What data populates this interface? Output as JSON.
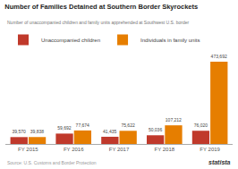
{
  "chart_data": {
    "type": "bar",
    "title": "Number of Families Detained at Southern Border Skyrockets",
    "subtitle": "Number of unaccompanied children and family units apprehended at Southwest U.S. border",
    "categories": [
      "FY 2015",
      "FY 2016",
      "FY 2017",
      "FY 2018",
      "FY 2019"
    ],
    "series": [
      {
        "name": "Unaccompanied children",
        "color": "#c0392b",
        "values": [
          39570,
          59692,
          41435,
          50036,
          76020
        ],
        "value_labels": [
          "39,570",
          "59,692",
          "41,435",
          "50,036",
          "76,020"
        ]
      },
      {
        "name": "Individuals in family units",
        "color": "#e67e00",
        "values": [
          39838,
          77674,
          75622,
          107212,
          473692
        ],
        "value_labels": [
          "39,838",
          "77,674",
          "75,622",
          "107,212",
          "473,692"
        ]
      }
    ],
    "ylim": [
      0,
      530000
    ],
    "yticks": [],
    "tick_labels": "x",
    "grid": false,
    "legend": "upper left",
    "data_labels": true,
    "annotations": [
      "Source: U.S. Customs and Border Protection",
      "statista"
    ]
  }
}
